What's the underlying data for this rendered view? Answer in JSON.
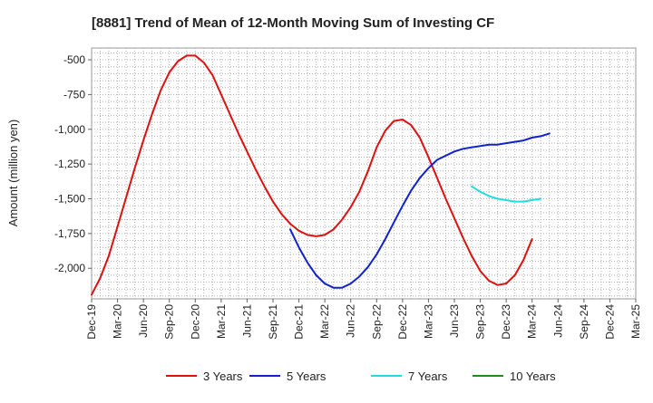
{
  "chart_data": {
    "type": "line",
    "title": "[8881]  Trend of Mean of 12-Month Moving Sum of Investing CF",
    "xlabel": "",
    "ylabel": "Amount (million yen)",
    "ylim": [
      -2220,
      -415
    ],
    "y_ticks": [
      -500,
      -750,
      -1000,
      -1250,
      -1500,
      -1750,
      -2000
    ],
    "y_tick_labels": [
      "-500",
      "-750",
      "-1,000",
      "-1,250",
      "-1,500",
      "-1,750",
      "-2,000"
    ],
    "x_ticks": [
      "Dec-19",
      "Mar-20",
      "Jun-20",
      "Sep-20",
      "Dec-20",
      "Mar-21",
      "Jun-21",
      "Sep-21",
      "Dec-21",
      "Mar-22",
      "Jun-22",
      "Sep-22",
      "Dec-22",
      "Mar-23",
      "Jun-23",
      "Sep-23",
      "Dec-23",
      "Mar-24",
      "Jun-24",
      "Sep-24",
      "Dec-24",
      "Mar-25"
    ],
    "grid": true,
    "legend_position": "bottom",
    "series": [
      {
        "name": "3 Years",
        "color": "#dd1111",
        "start": "Dec-19",
        "values": [
          -2190,
          -2070,
          -1910,
          -1700,
          -1490,
          -1280,
          -1080,
          -890,
          -720,
          -590,
          -510,
          -470,
          -470,
          -520,
          -610,
          -750,
          -890,
          -1030,
          -1160,
          -1290,
          -1410,
          -1520,
          -1610,
          -1680,
          -1730,
          -1760,
          -1770,
          -1760,
          -1720,
          -1650,
          -1560,
          -1450,
          -1300,
          -1130,
          -1010,
          -940,
          -930,
          -970,
          -1060,
          -1200,
          -1350,
          -1500,
          -1640,
          -1780,
          -1910,
          -2020,
          -2090,
          -2120,
          -2110,
          -2050,
          -1940,
          -1790
        ]
      },
      {
        "name": "5 Years",
        "color": "#1122cc",
        "start": "Nov-21",
        "values": [
          -1720,
          -1850,
          -1960,
          -2050,
          -2110,
          -2140,
          -2140,
          -2110,
          -2060,
          -1990,
          -1900,
          -1790,
          -1670,
          -1550,
          -1440,
          -1350,
          -1280,
          -1220,
          -1190,
          -1160,
          -1140,
          -1130,
          -1120,
          -1110,
          -1110,
          -1100,
          -1090,
          -1080,
          -1060,
          -1050,
          -1030
        ]
      },
      {
        "name": "7 Years",
        "color": "#22dddd",
        "start": "Aug-23",
        "values": [
          -1410,
          -1450,
          -1480,
          -1500,
          -1510,
          -1520,
          -1520,
          -1510,
          -1500
        ]
      },
      {
        "name": "10 Years",
        "color": "#228822",
        "start": "Mar-24",
        "values": []
      }
    ]
  }
}
